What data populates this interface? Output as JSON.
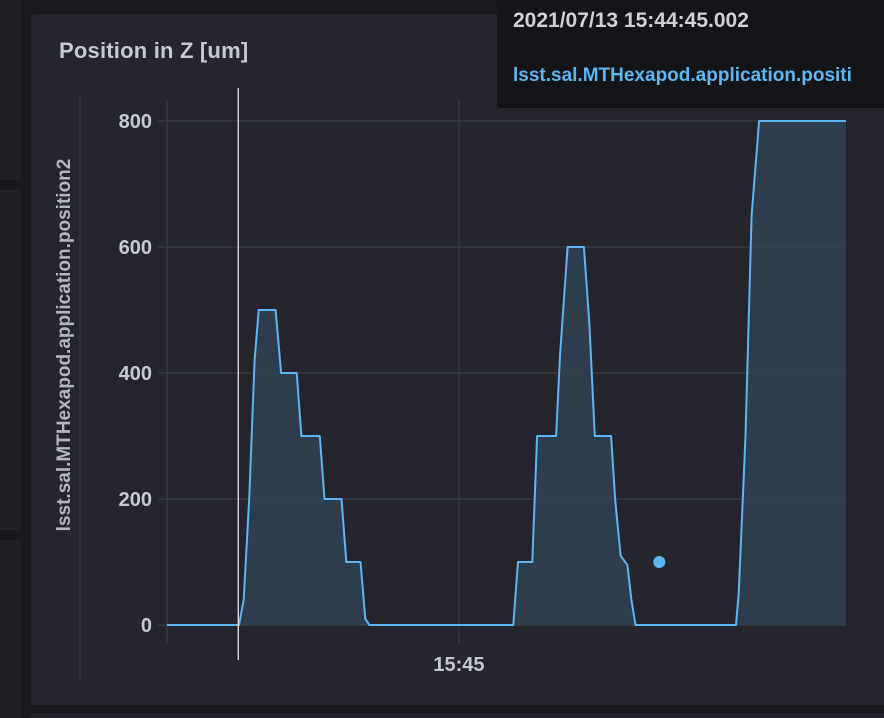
{
  "panel": {
    "title": "Position in Z [um]"
  },
  "tooltip": {
    "time": "2021/07/13 15:44:45.002",
    "series": "lsst.sal.MTHexapod.application.positi"
  },
  "colors": {
    "line": "#5fb6f0",
    "fill": "#2f4252",
    "grid": "#3a3c45",
    "background": "#25262d",
    "text": "#c7c9d0"
  },
  "chart_data": {
    "type": "area",
    "xlabel": "",
    "ylabel": "lsst.sal.MTHexapod.application.position2",
    "ylim": [
      0,
      830
    ],
    "xlim": [
      0,
      1
    ],
    "yticks": [
      0,
      200,
      400,
      600,
      800
    ],
    "xticks": [
      {
        "value": 0.43,
        "label": "15:45"
      }
    ],
    "grid": true,
    "legend": "none",
    "cursor_x": 0.105,
    "marker": {
      "x": 0.725,
      "y": 100
    },
    "series": [
      {
        "values": [
          [
            0.0,
            0
          ],
          [
            0.106,
            0
          ],
          [
            0.113,
            40
          ],
          [
            0.121,
            200
          ],
          [
            0.129,
            420
          ],
          [
            0.135,
            500
          ],
          [
            0.16,
            500
          ],
          [
            0.168,
            400
          ],
          [
            0.191,
            400
          ],
          [
            0.198,
            300
          ],
          [
            0.225,
            300
          ],
          [
            0.232,
            200
          ],
          [
            0.257,
            200
          ],
          [
            0.264,
            100
          ],
          [
            0.285,
            100
          ],
          [
            0.292,
            10
          ],
          [
            0.298,
            0
          ],
          [
            0.51,
            0
          ],
          [
            0.517,
            100
          ],
          [
            0.538,
            100
          ],
          [
            0.545,
            300
          ],
          [
            0.573,
            300
          ],
          [
            0.579,
            430
          ],
          [
            0.59,
            600
          ],
          [
            0.614,
            600
          ],
          [
            0.622,
            480
          ],
          [
            0.63,
            300
          ],
          [
            0.654,
            300
          ],
          [
            0.66,
            200
          ],
          [
            0.668,
            110
          ],
          [
            0.678,
            95
          ],
          [
            0.684,
            40
          ],
          [
            0.69,
            0
          ],
          [
            0.838,
            0
          ],
          [
            0.842,
            50
          ],
          [
            0.852,
            300
          ],
          [
            0.861,
            650
          ],
          [
            0.872,
            800
          ],
          [
            1.0,
            800
          ]
        ]
      }
    ]
  }
}
